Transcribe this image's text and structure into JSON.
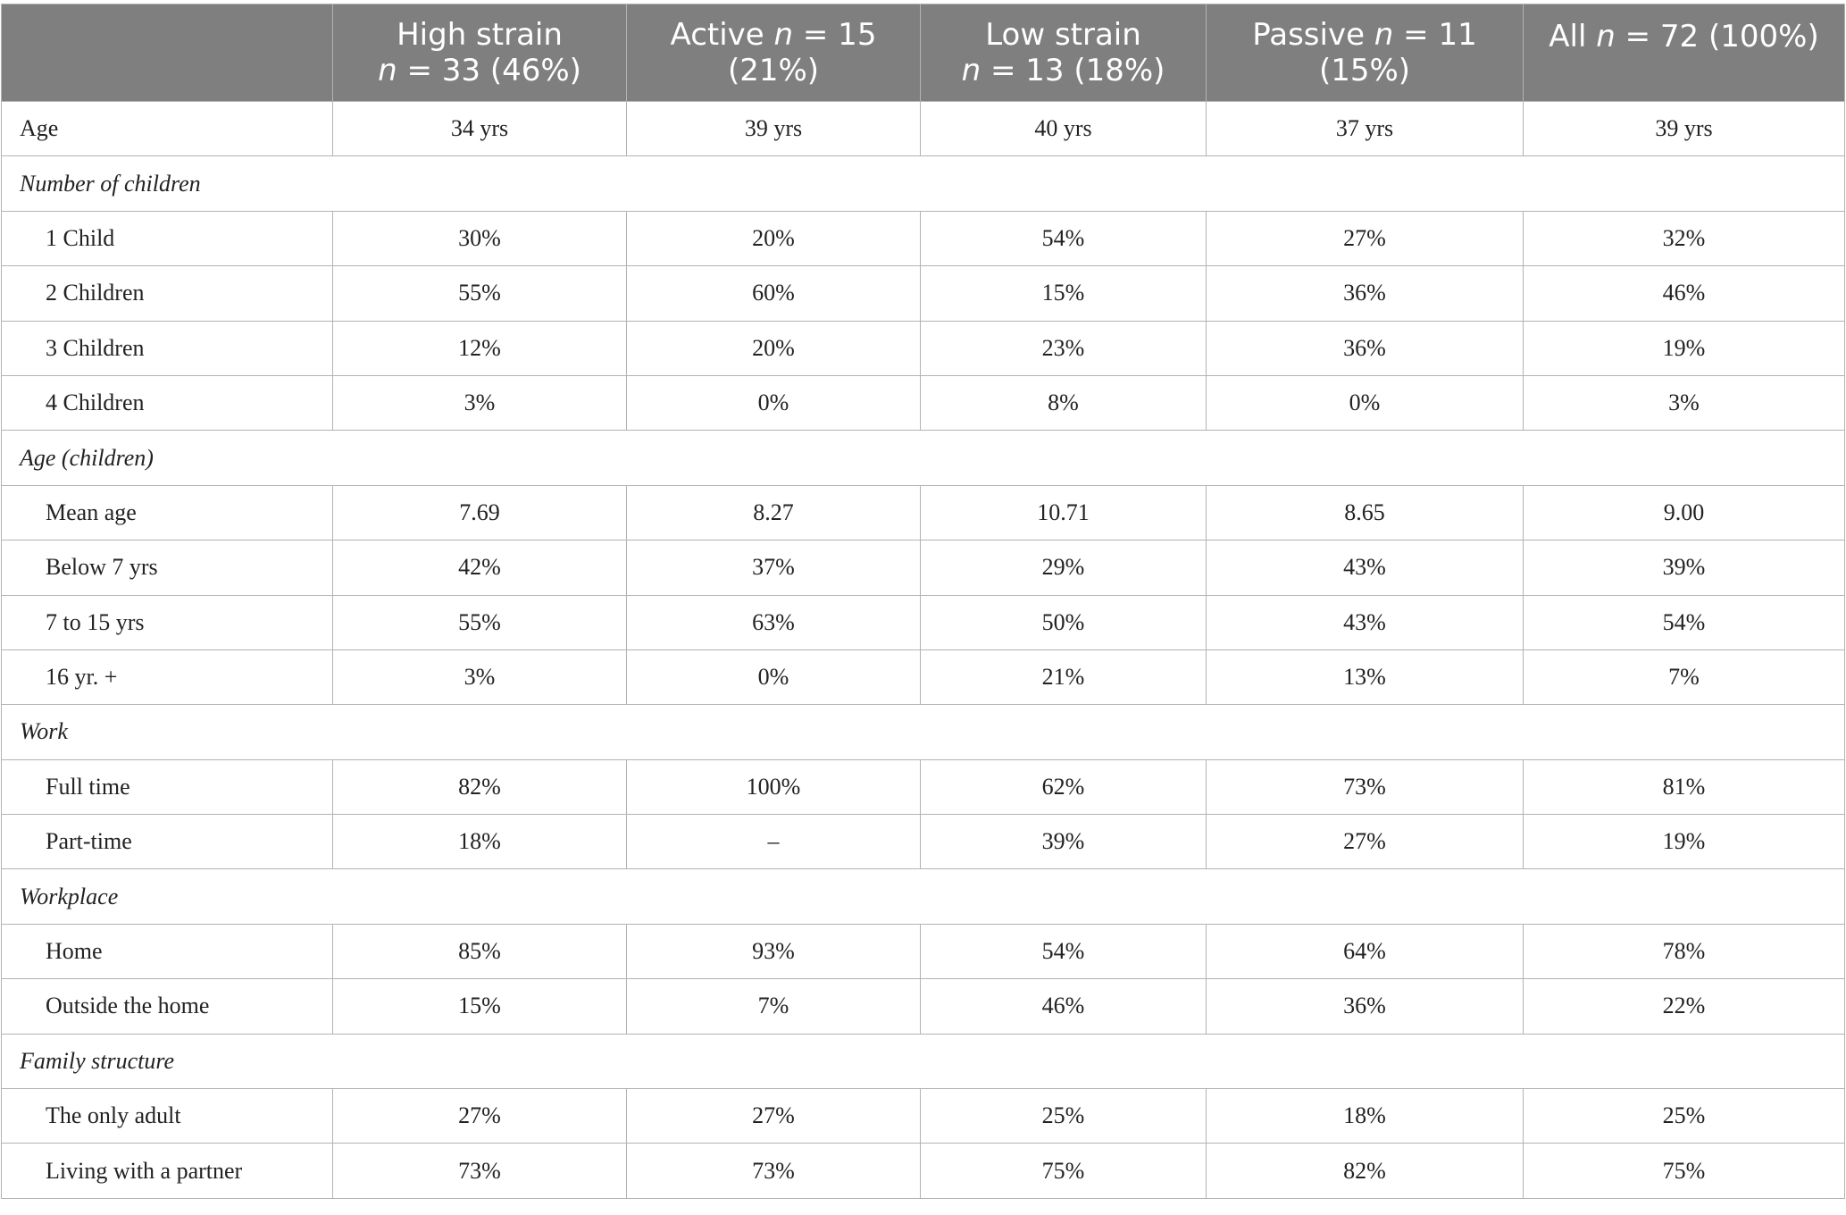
{
  "table": {
    "headers": [
      {
        "line1": "",
        "line2": ""
      },
      {
        "line1": "High strain",
        "line2_pre": "",
        "line2_n": "n",
        "line2_post": " = 33 (46%)"
      },
      {
        "line1_pre": "Active ",
        "line1_n": "n",
        "line1_post": " = 15",
        "line2": "(21%)"
      },
      {
        "line1": "Low strain",
        "line2_pre": "",
        "line2_n": "n",
        "line2_post": " = 13 (18%)"
      },
      {
        "line1_pre": "Passive ",
        "line1_n": "n",
        "line1_post": " = 11",
        "line2": "(15%)"
      },
      {
        "line1_pre": "All ",
        "line1_n": "n",
        "line1_post": " = 72 (100%)"
      }
    ],
    "rows": [
      {
        "label": "Age",
        "values": [
          "34 yrs",
          "39 yrs",
          "40 yrs",
          "37 yrs",
          "39 yrs"
        ]
      },
      {
        "section": "Number of children"
      },
      {
        "label": "1 Child",
        "values": [
          "30%",
          "20%",
          "54%",
          "27%",
          "32%"
        ]
      },
      {
        "label": "2 Children",
        "values": [
          "55%",
          "60%",
          "15%",
          "36%",
          "46%"
        ]
      },
      {
        "label": "3 Children",
        "values": [
          "12%",
          "20%",
          "23%",
          "36%",
          "19%"
        ]
      },
      {
        "label": "4 Children",
        "values": [
          "3%",
          "0%",
          "8%",
          "0%",
          "3%"
        ]
      },
      {
        "section": "Age (children)"
      },
      {
        "label": "Mean age",
        "values": [
          "7.69",
          "8.27",
          "10.71",
          "8.65",
          "9.00"
        ]
      },
      {
        "label": "Below 7 yrs",
        "values": [
          "42%",
          "37%",
          "29%",
          "43%",
          "39%"
        ]
      },
      {
        "label": "7 to 15 yrs",
        "values": [
          "55%",
          "63%",
          "50%",
          "43%",
          "54%"
        ]
      },
      {
        "label": "16 yr. +",
        "values": [
          "3%",
          "0%",
          "21%",
          "13%",
          "7%"
        ]
      },
      {
        "section": "Work"
      },
      {
        "label": "Full time",
        "values": [
          "82%",
          "100%",
          "62%",
          "73%",
          "81%"
        ]
      },
      {
        "label": "Part-time",
        "values": [
          "18%",
          "–",
          "39%",
          "27%",
          "19%"
        ]
      },
      {
        "section": "Workplace"
      },
      {
        "label": "Home",
        "values": [
          "85%",
          "93%",
          "54%",
          "64%",
          "78%"
        ]
      },
      {
        "label": "Outside the home",
        "values": [
          "15%",
          "7%",
          "46%",
          "36%",
          "22%"
        ]
      },
      {
        "section": "Family structure"
      },
      {
        "label": "The only adult",
        "values": [
          "27%",
          "27%",
          "25%",
          "18%",
          "25%"
        ]
      },
      {
        "label": "Living with a partner",
        "values": [
          "73%",
          "73%",
          "75%",
          "82%",
          "75%"
        ]
      }
    ]
  }
}
